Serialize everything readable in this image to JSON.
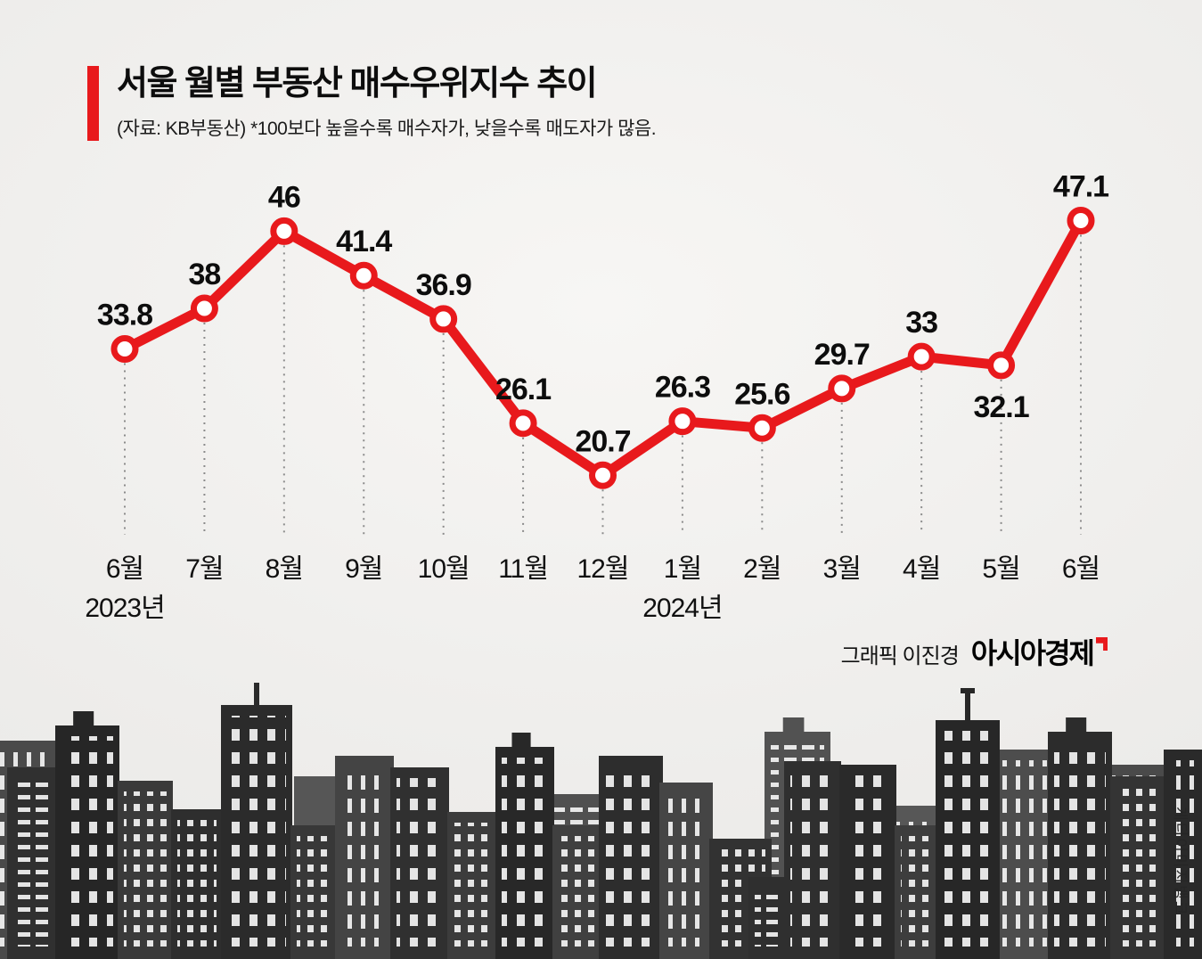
{
  "header": {
    "title": "서울 월별 부동산 매수우위지수 추이",
    "subtitle": "(자료: KB부동산)  *100보다 높을수록 매수자가, 낮을수록 매도자가 많음."
  },
  "credit": {
    "prefix": "그래픽 이진경",
    "brand": "아시아경제"
  },
  "watermark": "게티이미지뱅크",
  "colors": {
    "accent_red": "#e8191c",
    "label_black": "#0d0d0d",
    "background": "#eeedeb"
  },
  "chart_data": {
    "type": "line",
    "title": "서울 월별 부동산 매수우위지수 추이",
    "source_note": "(자료: KB부동산) *100보다 높을수록 매수자가, 낮을수록 매도자가 많음.",
    "categories": [
      "6월",
      "7월",
      "8월",
      "9월",
      "10월",
      "11월",
      "12월",
      "1월",
      "2월",
      "3월",
      "4월",
      "5월",
      "6월"
    ],
    "year_labels": [
      {
        "index": 0,
        "label": "2023년"
      },
      {
        "index": 7,
        "label": "2024년"
      }
    ],
    "values": [
      33.8,
      38,
      46,
      41.4,
      36.9,
      26.1,
      20.7,
      26.3,
      25.6,
      29.7,
      33,
      32.1,
      47.1
    ],
    "label_below_indices": [
      11
    ],
    "line_color": "#e8191c",
    "marker_fill": "#ffffff",
    "grid": "dotted-vertical-guides",
    "legend": "none",
    "xlabel": "",
    "ylabel": "매수우위지수",
    "ylim": [
      15,
      55
    ]
  }
}
